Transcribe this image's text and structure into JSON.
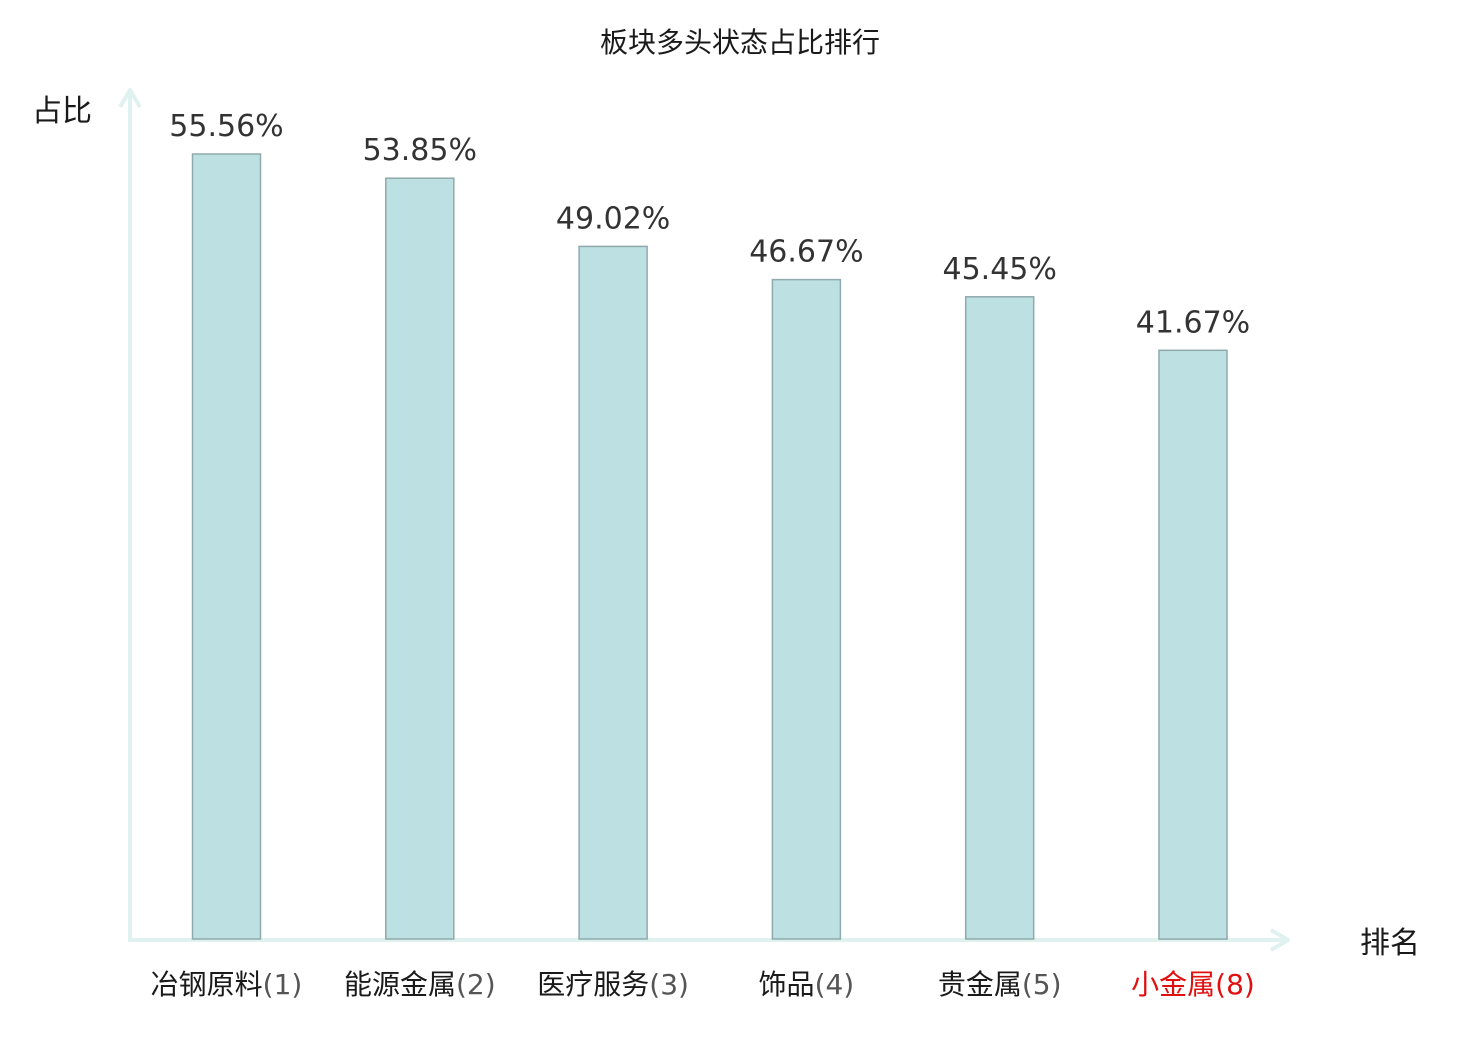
{
  "chart_data": {
    "type": "bar",
    "title": "板块多头状态占比排行",
    "ylabel": "占比",
    "xlabel": "排名",
    "grid": false,
    "ylim": [
      0,
      56
    ],
    "categories": [
      {
        "name": "冶钢原料",
        "rank": "(1)",
        "highlight": false
      },
      {
        "name": "能源金属",
        "rank": "(2)",
        "highlight": false
      },
      {
        "name": "医疗服务",
        "rank": "(3)",
        "highlight": false
      },
      {
        "name": "饰品",
        "rank": "(4)",
        "highlight": false
      },
      {
        "name": "贵金属",
        "rank": "(5)",
        "highlight": false
      },
      {
        "name": "小金属",
        "rank": "(8)",
        "highlight": true
      }
    ],
    "values": [
      55.56,
      53.85,
      49.02,
      46.67,
      45.45,
      41.67
    ],
    "value_labels": [
      "55.56%",
      "53.85%",
      "49.02%",
      "46.67%",
      "45.45%",
      "41.67%"
    ],
    "colors": {
      "bar_fill": "#bde0e3",
      "bar_stroke": "#8fa9ac",
      "axis": "#dff2ef",
      "label_text": "#333333",
      "category_text": "#1a1a1a",
      "rank_text": "#555555",
      "highlight_text": "#e01010"
    }
  }
}
